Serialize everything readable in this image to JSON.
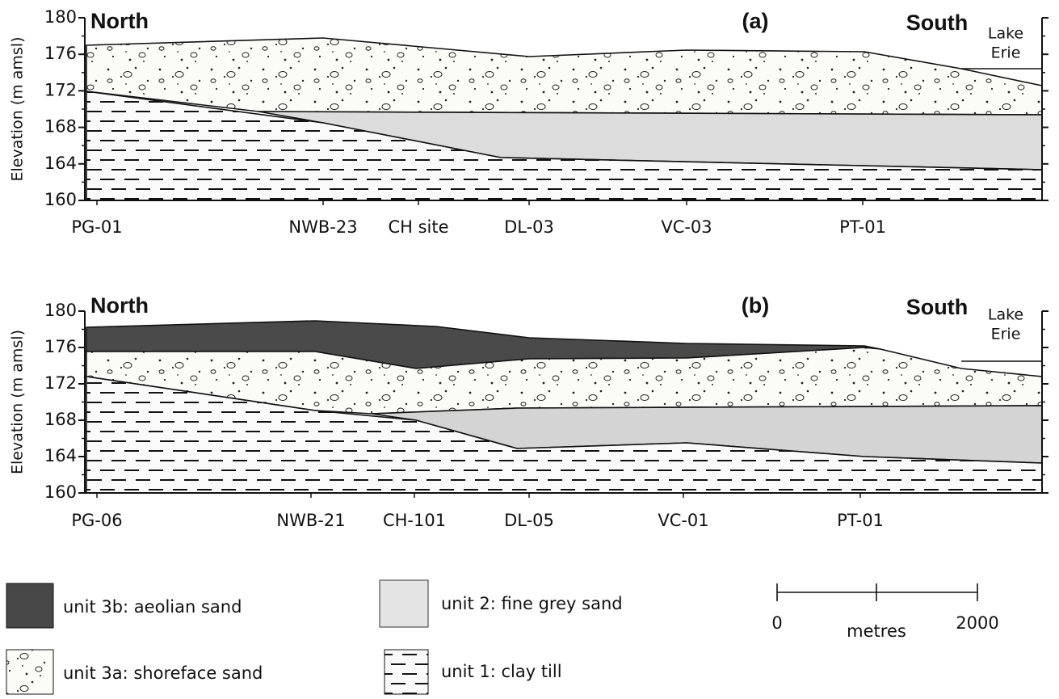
{
  "panels": [
    {
      "label": "(a)",
      "north": "North",
      "south": "South",
      "lake": [
        "Lake",
        "Erie"
      ],
      "y_axis_label": "Elevation (m amsl)",
      "ylim": [
        160,
        180
      ],
      "yticks": [
        160,
        164,
        168,
        172,
        176,
        180
      ],
      "sites": [
        "PG-01",
        "NWB-23",
        "CH site",
        "DL-03",
        "VC-03",
        "PT-01"
      ]
    },
    {
      "label": "(b)",
      "north": "North",
      "south": "South",
      "lake": [
        "Lake",
        "Erie"
      ],
      "y_axis_label": "Elevation (m amsl)",
      "ylim": [
        160,
        180
      ],
      "yticks": [
        160,
        164,
        168,
        172,
        176,
        180
      ],
      "sites": [
        "PG-06",
        "NWB-21",
        "CH-101",
        "DL-05",
        "VC-01",
        "PT-01"
      ]
    }
  ],
  "legend": [
    "unit 3b: aeolian sand",
    "unit 2: fine grey sand",
    "unit 3a: shoreface sand",
    "unit 1: clay till"
  ],
  "scale_bar": {
    "start": 0,
    "end": 2000,
    "unit": "metres"
  }
}
